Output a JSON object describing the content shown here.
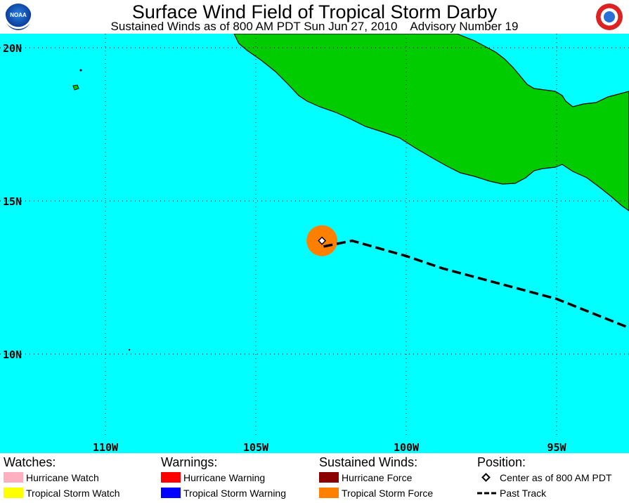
{
  "header": {
    "title": "Surface Wind Field of Tropical Storm Darby",
    "subtitle": "Sustained Winds as of 800 AM PDT Sun Jun 27, 2010    Advisory Number 19",
    "logo_left": "NOAA",
    "logo_right": "nws-logo"
  },
  "map": {
    "colors": {
      "ocean": "#00ffff",
      "land": "#00cc00",
      "coastline": "#000000",
      "tropical_storm_force": "#ff8000",
      "grid": "#000000"
    },
    "lat_labels": [
      "20N",
      "15N",
      "10N"
    ],
    "lon_labels": [
      "110W",
      "105W",
      "100W",
      "95W"
    ],
    "storm_center": {
      "lat": 13.7,
      "lon": 102.8
    },
    "past_track": [
      {
        "lat": 10.9,
        "lon": 92.7
      },
      {
        "lat": 11.8,
        "lon": 95.0
      },
      {
        "lat": 12.8,
        "lon": 98.8
      },
      {
        "lat": 13.2,
        "lon": 100.0
      },
      {
        "lat": 13.7,
        "lon": 101.8
      },
      {
        "lat": 13.5,
        "lon": 102.8
      }
    ]
  },
  "legend": {
    "watches": {
      "heading": "Watches:",
      "items": [
        {
          "label": "Hurricane Watch",
          "color": "#ffafc0"
        },
        {
          "label": "Tropical Storm Watch",
          "color": "#ffff00"
        }
      ]
    },
    "warnings": {
      "heading": "Warnings:",
      "items": [
        {
          "label": "Hurricane Warning",
          "color": "#ff0000"
        },
        {
          "label": "Tropical Storm Warning",
          "color": "#0000ff"
        }
      ]
    },
    "winds": {
      "heading": "Sustained Winds:",
      "items": [
        {
          "label": "Hurricane Force",
          "color": "#8b0000"
        },
        {
          "label": "Tropical Storm Force",
          "color": "#ff8000"
        }
      ]
    },
    "position": {
      "heading": "Position:",
      "items": [
        {
          "label": "Center as of 800 AM PDT",
          "icon": "diamond-icon"
        },
        {
          "label": "Past Track",
          "icon": "dashed-line-icon"
        }
      ]
    }
  }
}
